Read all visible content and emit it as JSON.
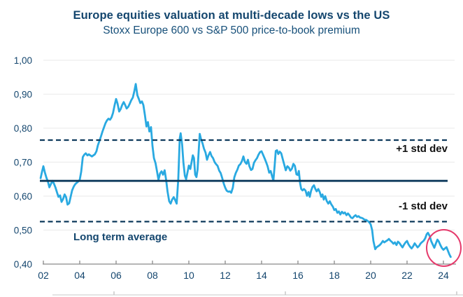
{
  "page": {
    "title": "Europe equities valuation at multi-decade lows vs the US",
    "subtitle": "Stoxx Europe 600 vs S&P 500 price-to-book premium"
  },
  "annotations": {
    "plus_one_std_dev": "+1 std dev",
    "minus_one_std_dev": "-1 std dev",
    "long_term_average": "Long term average"
  },
  "colors": {
    "navy_text": "#14466e",
    "navy_line": "#0e3a5c",
    "series_blue": "#29a9e1",
    "grid": "#ededed",
    "axis_gray": "#8a8a8a",
    "highlight_red": "#e5396b",
    "std_label_color": "#111111"
  },
  "chart_data": {
    "type": "line",
    "title": "Europe equities valuation at multi-decade lows vs the US",
    "subtitle": "Stoxx Europe 600 vs S&P 500 price-to-book premium",
    "grid": "horizontal",
    "legend_position": "none",
    "x_axis": {
      "tick_labels": [
        "02",
        "04",
        "06",
        "08",
        "10",
        "12",
        "14",
        "16",
        "18",
        "20",
        "22",
        "24"
      ],
      "tick_years": [
        2002,
        2004,
        2006,
        2008,
        2010,
        2012,
        2014,
        2016,
        2018,
        2020,
        2022,
        2024
      ],
      "range": [
        2001.85,
        2024.7
      ]
    },
    "y_axis": {
      "tick_labels": [
        "1,00",
        "0,90",
        "0,80",
        "0,70",
        "0,60",
        "0,50",
        "0,40"
      ],
      "tick_values": [
        1.0,
        0.9,
        0.8,
        0.7,
        0.6,
        0.5,
        0.4
      ],
      "range": [
        0.4,
        1.0
      ],
      "decimal_style": "comma"
    },
    "reference_lines": [
      {
        "id": "plus1",
        "label": "+1 std dev",
        "value": 0.765,
        "style": "dashed"
      },
      {
        "id": "avg",
        "label": "Long term average",
        "value": 0.645,
        "style": "solid"
      },
      {
        "id": "minus1",
        "label": "-1 std dev",
        "value": 0.525,
        "style": "dashed"
      }
    ],
    "highlight_ellipse": {
      "x_year": 2024.0,
      "y_value": 0.45
    },
    "series": [
      {
        "name": "Stoxx Europe 600 vs S&P 500 price-to-book premium",
        "points": [
          [
            2001.85,
            0.653
          ],
          [
            2001.92,
            0.67
          ],
          [
            2002.0,
            0.688
          ],
          [
            2002.08,
            0.67
          ],
          [
            2002.17,
            0.654
          ],
          [
            2002.25,
            0.643
          ],
          [
            2002.33,
            0.626
          ],
          [
            2002.42,
            0.636
          ],
          [
            2002.5,
            0.645
          ],
          [
            2002.58,
            0.637
          ],
          [
            2002.67,
            0.625
          ],
          [
            2002.75,
            0.611
          ],
          [
            2002.83,
            0.598
          ],
          [
            2002.92,
            0.602
          ],
          [
            2003.0,
            0.583
          ],
          [
            2003.08,
            0.591
          ],
          [
            2003.17,
            0.605
          ],
          [
            2003.25,
            0.597
          ],
          [
            2003.33,
            0.575
          ],
          [
            2003.42,
            0.579
          ],
          [
            2003.5,
            0.598
          ],
          [
            2003.58,
            0.617
          ],
          [
            2003.67,
            0.628
          ],
          [
            2003.75,
            0.635
          ],
          [
            2003.83,
            0.639
          ],
          [
            2003.92,
            0.643
          ],
          [
            2004.0,
            0.648
          ],
          [
            2004.08,
            0.672
          ],
          [
            2004.17,
            0.715
          ],
          [
            2004.25,
            0.722
          ],
          [
            2004.33,
            0.726
          ],
          [
            2004.42,
            0.72
          ],
          [
            2004.5,
            0.723
          ],
          [
            2004.58,
            0.72
          ],
          [
            2004.67,
            0.717
          ],
          [
            2004.75,
            0.72
          ],
          [
            2004.83,
            0.723
          ],
          [
            2004.92,
            0.732
          ],
          [
            2005.0,
            0.75
          ],
          [
            2005.08,
            0.762
          ],
          [
            2005.17,
            0.776
          ],
          [
            2005.25,
            0.79
          ],
          [
            2005.33,
            0.802
          ],
          [
            2005.42,
            0.815
          ],
          [
            2005.5,
            0.823
          ],
          [
            2005.58,
            0.828
          ],
          [
            2005.67,
            0.825
          ],
          [
            2005.75,
            0.832
          ],
          [
            2005.83,
            0.845
          ],
          [
            2005.92,
            0.868
          ],
          [
            2006.0,
            0.886
          ],
          [
            2006.08,
            0.872
          ],
          [
            2006.17,
            0.849
          ],
          [
            2006.25,
            0.856
          ],
          [
            2006.33,
            0.868
          ],
          [
            2006.42,
            0.877
          ],
          [
            2006.5,
            0.868
          ],
          [
            2006.58,
            0.858
          ],
          [
            2006.67,
            0.863
          ],
          [
            2006.75,
            0.872
          ],
          [
            2006.83,
            0.882
          ],
          [
            2006.92,
            0.89
          ],
          [
            2007.0,
            0.908
          ],
          [
            2007.08,
            0.93
          ],
          [
            2007.17,
            0.897
          ],
          [
            2007.25,
            0.886
          ],
          [
            2007.33,
            0.874
          ],
          [
            2007.42,
            0.879
          ],
          [
            2007.5,
            0.868
          ],
          [
            2007.58,
            0.84
          ],
          [
            2007.67,
            0.805
          ],
          [
            2007.75,
            0.818
          ],
          [
            2007.83,
            0.79
          ],
          [
            2007.92,
            0.803
          ],
          [
            2008.0,
            0.748
          ],
          [
            2008.08,
            0.712
          ],
          [
            2008.17,
            0.697
          ],
          [
            2008.25,
            0.673
          ],
          [
            2008.33,
            0.648
          ],
          [
            2008.42,
            0.667
          ],
          [
            2008.5,
            0.673
          ],
          [
            2008.58,
            0.663
          ],
          [
            2008.67,
            0.676
          ],
          [
            2008.75,
            0.648
          ],
          [
            2008.83,
            0.613
          ],
          [
            2008.92,
            0.585
          ],
          [
            2009.0,
            0.578
          ],
          [
            2009.08,
            0.59
          ],
          [
            2009.17,
            0.597
          ],
          [
            2009.25,
            0.588
          ],
          [
            2009.33,
            0.578
          ],
          [
            2009.42,
            0.65
          ],
          [
            2009.5,
            0.77
          ],
          [
            2009.55,
            0.785
          ],
          [
            2009.63,
            0.752
          ],
          [
            2009.7,
            0.7
          ],
          [
            2009.78,
            0.66
          ],
          [
            2009.85,
            0.65
          ],
          [
            2009.92,
            0.668
          ],
          [
            2010.0,
            0.69
          ],
          [
            2010.08,
            0.68
          ],
          [
            2010.15,
            0.7
          ],
          [
            2010.22,
            0.72
          ],
          [
            2010.28,
            0.712
          ],
          [
            2010.35,
            0.663
          ],
          [
            2010.42,
            0.656
          ],
          [
            2010.48,
            0.678
          ],
          [
            2010.55,
            0.74
          ],
          [
            2010.6,
            0.783
          ],
          [
            2010.67,
            0.768
          ],
          [
            2010.75,
            0.756
          ],
          [
            2010.83,
            0.74
          ],
          [
            2010.92,
            0.728
          ],
          [
            2011.0,
            0.707
          ],
          [
            2011.08,
            0.72
          ],
          [
            2011.17,
            0.73
          ],
          [
            2011.25,
            0.718
          ],
          [
            2011.33,
            0.712
          ],
          [
            2011.42,
            0.7
          ],
          [
            2011.5,
            0.694
          ],
          [
            2011.58,
            0.689
          ],
          [
            2011.67,
            0.675
          ],
          [
            2011.75,
            0.668
          ],
          [
            2011.83,
            0.654
          ],
          [
            2011.92,
            0.637
          ],
          [
            2012.0,
            0.625
          ],
          [
            2012.08,
            0.616
          ],
          [
            2012.17,
            0.613
          ],
          [
            2012.25,
            0.614
          ],
          [
            2012.33,
            0.61
          ],
          [
            2012.42,
            0.625
          ],
          [
            2012.5,
            0.655
          ],
          [
            2012.58,
            0.668
          ],
          [
            2012.67,
            0.678
          ],
          [
            2012.75,
            0.69
          ],
          [
            2012.83,
            0.694
          ],
          [
            2012.92,
            0.703
          ],
          [
            2013.0,
            0.717
          ],
          [
            2013.08,
            0.701
          ],
          [
            2013.17,
            0.695
          ],
          [
            2013.25,
            0.707
          ],
          [
            2013.33,
            0.688
          ],
          [
            2013.42,
            0.677
          ],
          [
            2013.5,
            0.68
          ],
          [
            2013.58,
            0.698
          ],
          [
            2013.67,
            0.706
          ],
          [
            2013.75,
            0.712
          ],
          [
            2013.83,
            0.722
          ],
          [
            2013.92,
            0.73
          ],
          [
            2014.0,
            0.732
          ],
          [
            2014.08,
            0.722
          ],
          [
            2014.17,
            0.711
          ],
          [
            2014.25,
            0.7
          ],
          [
            2014.33,
            0.688
          ],
          [
            2014.42,
            0.669
          ],
          [
            2014.5,
            0.674
          ],
          [
            2014.58,
            0.658
          ],
          [
            2014.65,
            0.646
          ],
          [
            2014.72,
            0.69
          ],
          [
            2014.78,
            0.733
          ],
          [
            2014.85,
            0.735
          ],
          [
            2014.92,
            0.724
          ],
          [
            2015.0,
            0.731
          ],
          [
            2015.08,
            0.726
          ],
          [
            2015.17,
            0.708
          ],
          [
            2015.25,
            0.692
          ],
          [
            2015.33,
            0.676
          ],
          [
            2015.42,
            0.688
          ],
          [
            2015.5,
            0.684
          ],
          [
            2015.58,
            0.675
          ],
          [
            2015.67,
            0.681
          ],
          [
            2015.75,
            0.695
          ],
          [
            2015.83,
            0.689
          ],
          [
            2015.92,
            0.664
          ],
          [
            2016.0,
            0.662
          ],
          [
            2016.05,
            0.674
          ],
          [
            2016.12,
            0.638
          ],
          [
            2016.18,
            0.621
          ],
          [
            2016.25,
            0.617
          ],
          [
            2016.33,
            0.621
          ],
          [
            2016.42,
            0.616
          ],
          [
            2016.5,
            0.601
          ],
          [
            2016.58,
            0.612
          ],
          [
            2016.65,
            0.598
          ],
          [
            2016.72,
            0.615
          ],
          [
            2016.8,
            0.627
          ],
          [
            2016.88,
            0.632
          ],
          [
            2016.95,
            0.622
          ],
          [
            2017.03,
            0.614
          ],
          [
            2017.12,
            0.621
          ],
          [
            2017.2,
            0.612
          ],
          [
            2017.28,
            0.598
          ],
          [
            2017.35,
            0.605
          ],
          [
            2017.42,
            0.59
          ],
          [
            2017.5,
            0.6
          ],
          [
            2017.58,
            0.586
          ],
          [
            2017.67,
            0.578
          ],
          [
            2017.75,
            0.585
          ],
          [
            2017.83,
            0.576
          ],
          [
            2017.92,
            0.569
          ],
          [
            2018.0,
            0.559
          ],
          [
            2018.08,
            0.562
          ],
          [
            2018.17,
            0.551
          ],
          [
            2018.25,
            0.555
          ],
          [
            2018.33,
            0.546
          ],
          [
            2018.42,
            0.554
          ],
          [
            2018.5,
            0.549
          ],
          [
            2018.58,
            0.552
          ],
          [
            2018.67,
            0.544
          ],
          [
            2018.75,
            0.549
          ],
          [
            2018.83,
            0.544
          ],
          [
            2018.92,
            0.537
          ],
          [
            2019.0,
            0.535
          ],
          [
            2019.08,
            0.54
          ],
          [
            2019.17,
            0.544
          ],
          [
            2019.25,
            0.539
          ],
          [
            2019.33,
            0.541
          ],
          [
            2019.42,
            0.537
          ],
          [
            2019.5,
            0.536
          ],
          [
            2019.58,
            0.534
          ],
          [
            2019.67,
            0.53
          ],
          [
            2019.75,
            0.53
          ],
          [
            2019.83,
            0.527
          ],
          [
            2019.92,
            0.523
          ],
          [
            2020.0,
            0.517
          ],
          [
            2020.08,
            0.5
          ],
          [
            2020.15,
            0.468
          ],
          [
            2020.25,
            0.444
          ],
          [
            2020.33,
            0.45
          ],
          [
            2020.42,
            0.453
          ],
          [
            2020.5,
            0.456
          ],
          [
            2020.58,
            0.461
          ],
          [
            2020.67,
            0.468
          ],
          [
            2020.75,
            0.464
          ],
          [
            2020.83,
            0.467
          ],
          [
            2020.92,
            0.47
          ],
          [
            2021.0,
            0.474
          ],
          [
            2021.08,
            0.469
          ],
          [
            2021.17,
            0.465
          ],
          [
            2021.25,
            0.46
          ],
          [
            2021.33,
            0.464
          ],
          [
            2021.42,
            0.456
          ],
          [
            2021.5,
            0.466
          ],
          [
            2021.58,
            0.462
          ],
          [
            2021.67,
            0.455
          ],
          [
            2021.75,
            0.449
          ],
          [
            2021.83,
            0.457
          ],
          [
            2021.92,
            0.464
          ],
          [
            2022.0,
            0.468
          ],
          [
            2022.08,
            0.458
          ],
          [
            2022.17,
            0.451
          ],
          [
            2022.25,
            0.446
          ],
          [
            2022.33,
            0.452
          ],
          [
            2022.42,
            0.461
          ],
          [
            2022.5,
            0.455
          ],
          [
            2022.58,
            0.449
          ],
          [
            2022.67,
            0.454
          ],
          [
            2022.75,
            0.461
          ],
          [
            2022.83,
            0.465
          ],
          [
            2022.92,
            0.469
          ],
          [
            2023.0,
            0.476
          ],
          [
            2023.08,
            0.488
          ],
          [
            2023.15,
            0.492
          ],
          [
            2023.25,
            0.482
          ],
          [
            2023.33,
            0.467
          ],
          [
            2023.42,
            0.457
          ],
          [
            2023.5,
            0.448
          ],
          [
            2023.58,
            0.46
          ],
          [
            2023.67,
            0.472
          ],
          [
            2023.75,
            0.466
          ],
          [
            2023.83,
            0.456
          ],
          [
            2023.92,
            0.447
          ],
          [
            2024.0,
            0.442
          ],
          [
            2024.08,
            0.446
          ],
          [
            2024.17,
            0.45
          ],
          [
            2024.25,
            0.439
          ],
          [
            2024.33,
            0.428
          ],
          [
            2024.4,
            0.421
          ]
        ]
      }
    ]
  }
}
